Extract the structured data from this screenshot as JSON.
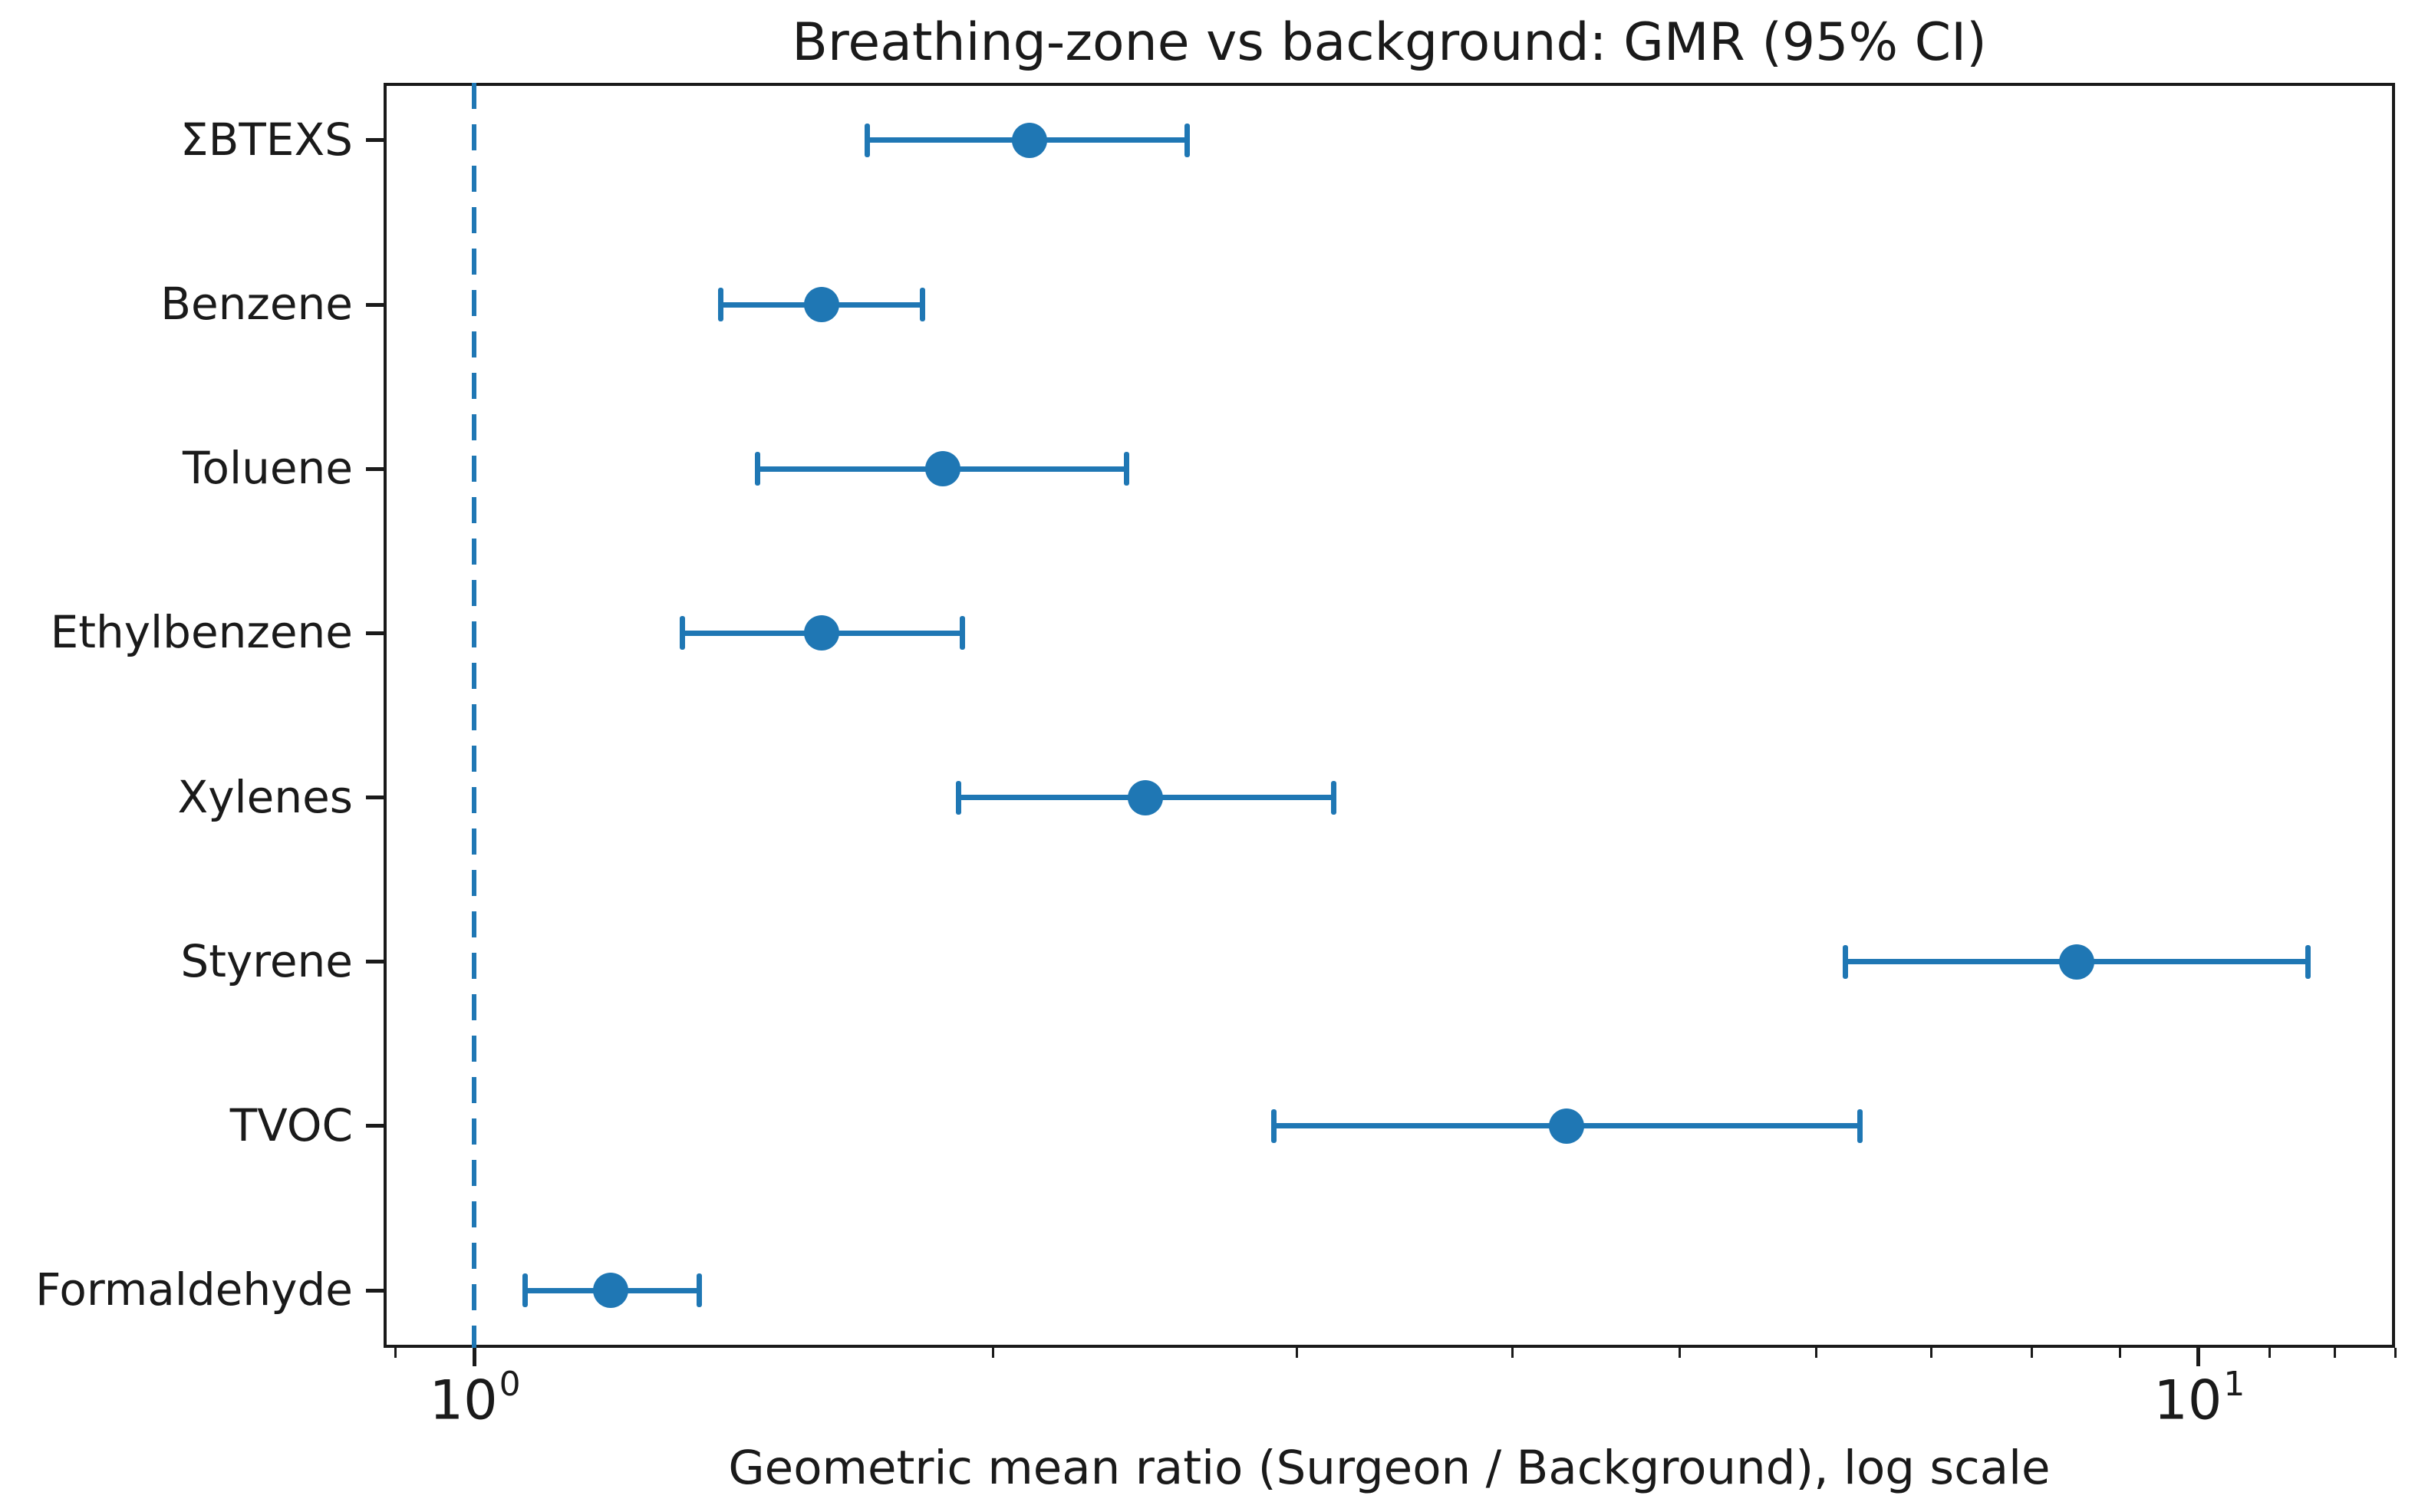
{
  "chart_data": {
    "type": "scatter",
    "subtype": "horizontal-errorbar-forest-plot",
    "title": "Breathing-zone vs background: GMR (95% CI)",
    "xlabel": "Geometric mean ratio (Surgeon / Background), log scale",
    "xscale": "log",
    "xlim": [
      0.886,
      13.0
    ],
    "grid": false,
    "legend": null,
    "reference_line": {
      "x": 1.0,
      "style": "dashed",
      "color": "#1f77b4"
    },
    "categories": [
      "ΣBTEXS",
      "Benzene",
      "Toluene",
      "Ethylbenzene",
      "Xylenes",
      "Styrene",
      "TVOC",
      "Formaldehyde"
    ],
    "points": [
      {
        "label": "ΣBTEXS",
        "gmr": 2.1,
        "ci_low": 1.69,
        "ci_high": 2.59
      },
      {
        "label": "Benzene",
        "gmr": 1.59,
        "ci_low": 1.39,
        "ci_high": 1.82
      },
      {
        "label": "Toluene",
        "gmr": 1.87,
        "ci_low": 1.46,
        "ci_high": 2.39
      },
      {
        "label": "Ethylbenzene",
        "gmr": 1.59,
        "ci_low": 1.32,
        "ci_high": 1.92
      },
      {
        "label": "Xylenes",
        "gmr": 2.45,
        "ci_low": 1.91,
        "ci_high": 3.15
      },
      {
        "label": "Styrene",
        "gmr": 8.5,
        "ci_low": 6.24,
        "ci_high": 11.57
      },
      {
        "label": "TVOC",
        "gmr": 4.3,
        "ci_low": 2.91,
        "ci_high": 6.36
      },
      {
        "label": "Formaldehyde",
        "gmr": 1.2,
        "ci_low": 1.07,
        "ci_high": 1.35
      }
    ],
    "x_major_ticks": [
      {
        "value": 1,
        "label_base": "10",
        "label_exp": "0"
      },
      {
        "value": 10,
        "label_base": "10",
        "label_exp": "1"
      }
    ],
    "x_minor_ticks": [
      0.9,
      2,
      3,
      4,
      5,
      6,
      7,
      8,
      9,
      11,
      12,
      13
    ],
    "colors": {
      "series": "#1f77b4",
      "reference_line": "#1f77b4",
      "axis": "#1a1a1a",
      "background": "#ffffff"
    }
  }
}
